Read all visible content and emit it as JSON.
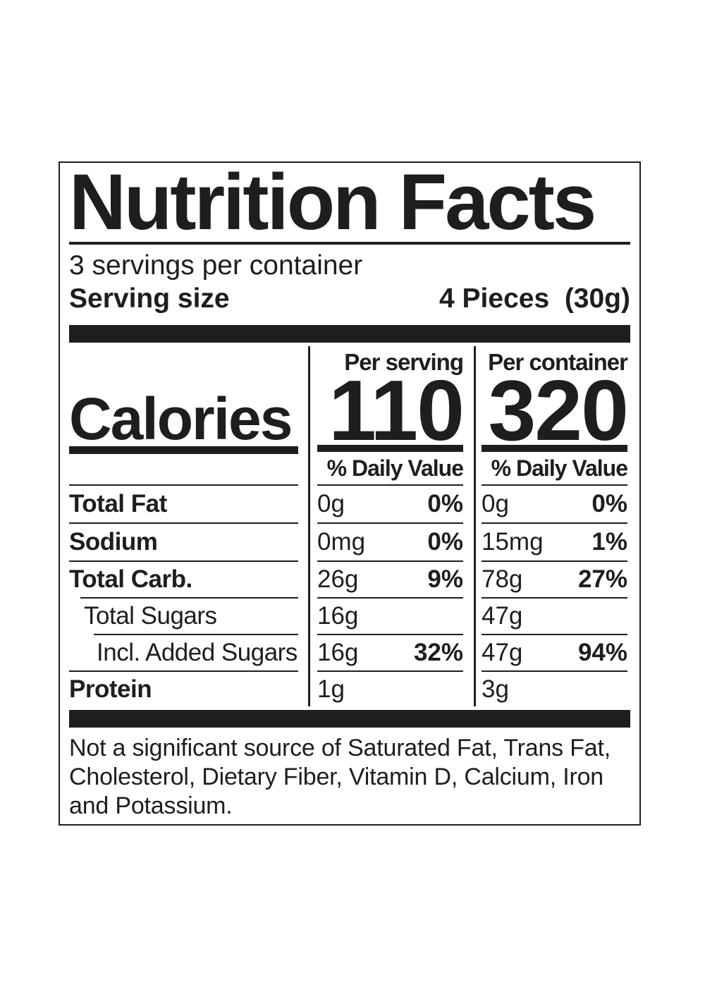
{
  "label": {
    "title": "Nutrition Facts",
    "servings_per_container": "3 servings per container",
    "serving_size": {
      "label": "Serving size",
      "value": "4 Pieces  (30g)"
    },
    "calories_label": "Calories",
    "columns": [
      {
        "header": "Per serving",
        "calories": "110",
        "daily_value_header": "% Daily Value"
      },
      {
        "header": "Per container",
        "calories": "320",
        "daily_value_header": "% Daily Value"
      }
    ],
    "rows": [
      {
        "name": "Total Fat",
        "per_serving": {
          "amount": "0g",
          "dv": "0%"
        },
        "per_container": {
          "amount": "0g",
          "dv": "0%"
        }
      },
      {
        "name": "Sodium",
        "per_serving": {
          "amount": "0mg",
          "dv": "0%"
        },
        "per_container": {
          "amount": "15mg",
          "dv": "1%"
        }
      },
      {
        "name": "Total Carb.",
        "per_serving": {
          "amount": "26g",
          "dv": "9%"
        },
        "per_container": {
          "amount": "78g",
          "dv": "27%"
        }
      },
      {
        "name": "Total Sugars",
        "per_serving": {
          "amount": "16g",
          "dv": ""
        },
        "per_container": {
          "amount": "47g",
          "dv": ""
        }
      },
      {
        "name": "Incl. Added Sugars",
        "per_serving": {
          "amount": "16g",
          "dv": "32%"
        },
        "per_container": {
          "amount": "47g",
          "dv": "94%"
        }
      },
      {
        "name": "Protein",
        "per_serving": {
          "amount": "1g",
          "dv": ""
        },
        "per_container": {
          "amount": "3g",
          "dv": ""
        }
      }
    ],
    "footnote": "Not a significant source of Saturated Fat, Trans Fat, Cholesterol, Dietary Fiber, Vitamin D, Calcium, Iron and Potassium.",
    "colors": {
      "ink": "#1e1e1e",
      "background": "#ffffff"
    }
  }
}
